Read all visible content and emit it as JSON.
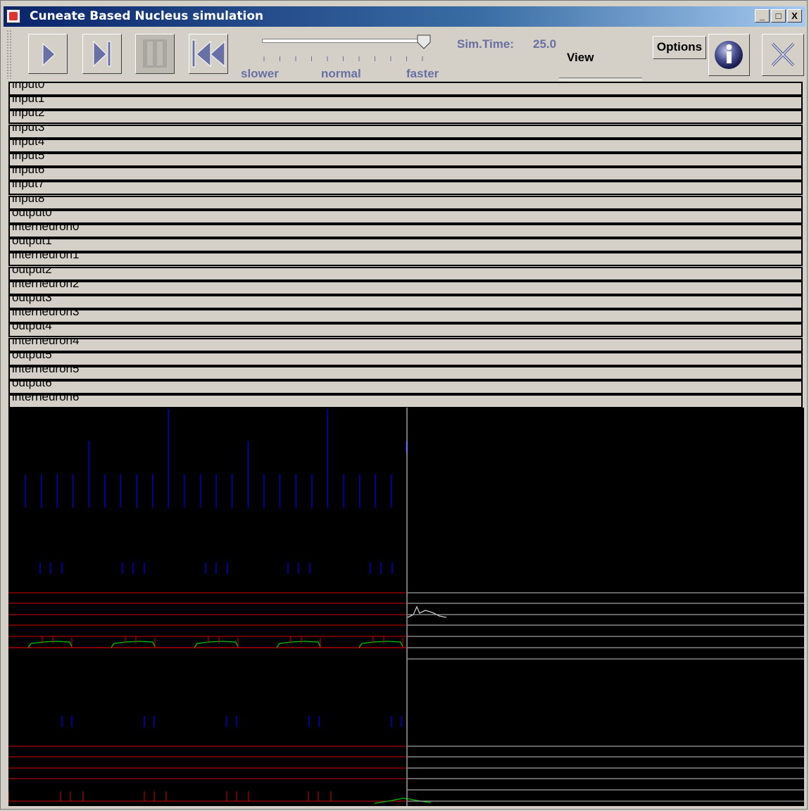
{
  "window": {
    "title": "Cuneate Based Nucleus simulation",
    "controls": [
      "_",
      "□",
      "X"
    ]
  },
  "toolbar": {
    "buttons": [
      {
        "name": "play",
        "icon": "play-icon"
      },
      {
        "name": "step",
        "icon": "step-forward-icon"
      },
      {
        "name": "pause",
        "icon": "pause-icon",
        "disabled": true
      },
      {
        "name": "rewind",
        "icon": "rewind-to-start-icon"
      }
    ],
    "speed": {
      "labels": {
        "slower": "slower",
        "normal": "normal",
        "faster": "faster"
      },
      "value": 1.0,
      "ticks": 11
    },
    "sim_time_label": "Sim.Time:",
    "sim_time_value": "25.0",
    "view_label": "View",
    "options_label": "Options",
    "info_icon": "info-icon",
    "exit_icon": "close-x-icon"
  },
  "neurons": [
    "input0",
    "input1",
    "input2",
    "input3",
    "input4",
    "input5",
    "input6",
    "input7",
    "input8",
    "output0",
    "interneuron0",
    "output1",
    "interneuron1",
    "output2",
    "interneuron2",
    "output3",
    "interneuron3",
    "output4",
    "interneuron4",
    "output5",
    "interneuron5",
    "output6",
    "interneuron6"
  ],
  "colors": {
    "spike": "#0000c8",
    "trace_red": "#d00000",
    "trace_green": "#00c000",
    "trace_white": "#c8c8c8",
    "plot_bg": "#000000"
  }
}
